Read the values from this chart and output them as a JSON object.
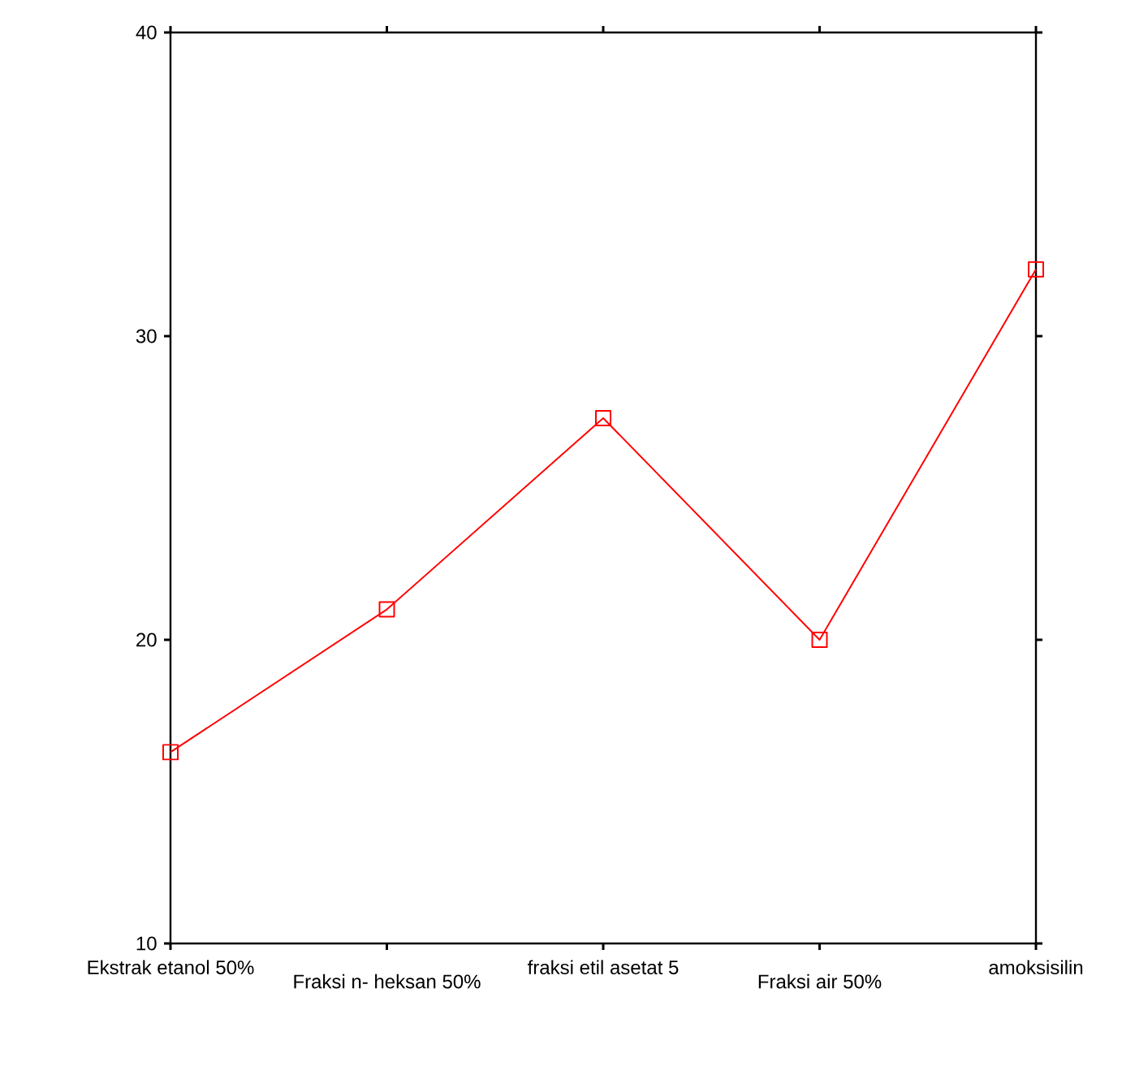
{
  "chart_data": {
    "type": "line",
    "categories": [
      "Ekstrak etanol 50%",
      "Fraksi n- heksan 50%",
      "fraksi etil asetat 5",
      "Fraksi air 50%",
      "amoksisilin"
    ],
    "series": [
      {
        "color": "#ff0000",
        "values": [
          16.3,
          21.0,
          27.3,
          20.0,
          32.2
        ]
      }
    ],
    "ylim": [
      10,
      40
    ],
    "yticks": [
      10,
      20,
      30,
      40
    ],
    "grid": false,
    "marker": "square",
    "line_style": "solid"
  }
}
